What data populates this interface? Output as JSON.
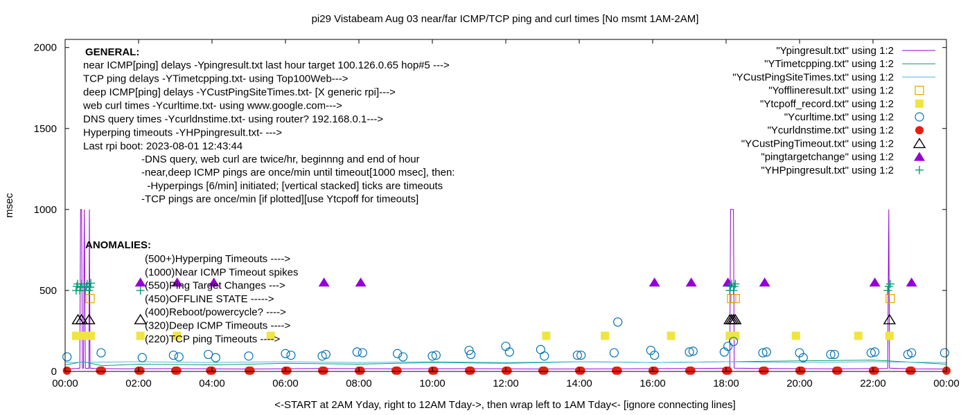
{
  "chart_data": {
    "type": "scatter",
    "title": "pi29 Vistabeam Aug 03  near/far ICMP/TCP ping and curl times [No msmt 1AM-2AM]",
    "xlabel": "<-START at 2AM Yday, right to 12AM Tday->, then wrap left to 1AM Tday<- [ignore connecting lines]",
    "ylabel": "msec",
    "xlim": [
      0,
      24
    ],
    "ylim": [
      0,
      2050
    ],
    "grid": false,
    "legend_position": "top-right",
    "x_ticks": [
      {
        "v": 0,
        "label": "00:00"
      },
      {
        "v": 2,
        "label": "02:00"
      },
      {
        "v": 4,
        "label": "04:00"
      },
      {
        "v": 6,
        "label": "06:00"
      },
      {
        "v": 8,
        "label": "08:00"
      },
      {
        "v": 10,
        "label": "10:00"
      },
      {
        "v": 12,
        "label": "12:00"
      },
      {
        "v": 14,
        "label": "14:00"
      },
      {
        "v": 16,
        "label": "16:00"
      },
      {
        "v": 18,
        "label": "18:00"
      },
      {
        "v": 20,
        "label": "20:00"
      },
      {
        "v": 22,
        "label": "22:00"
      },
      {
        "v": 24,
        "label": "00:00"
      }
    ],
    "y_ticks": [
      {
        "v": 0,
        "label": "0"
      },
      {
        "v": 500,
        "label": "500"
      },
      {
        "v": 1000,
        "label": "1000"
      },
      {
        "v": 1500,
        "label": "1500"
      },
      {
        "v": 2000,
        "label": "2000"
      }
    ],
    "series": [
      {
        "name": "\"Ypingresult.txt\" using 1:2",
        "style": "line",
        "color": "#9400d3",
        "points": [
          [
            0.0,
            15
          ],
          [
            0.3,
            18
          ],
          [
            0.4,
            20
          ],
          [
            0.42,
            1000
          ],
          [
            0.45,
            1000
          ],
          [
            0.47,
            20
          ],
          [
            0.5,
            20
          ],
          [
            0.52,
            1000
          ],
          [
            0.55,
            20
          ],
          [
            0.6,
            18
          ],
          [
            0.65,
            20
          ],
          [
            0.66,
            1000
          ],
          [
            0.68,
            20
          ],
          [
            0.8,
            18
          ],
          [
            1.5,
            16
          ],
          [
            3,
            17
          ],
          [
            5,
            15
          ],
          [
            7,
            18
          ],
          [
            9,
            16
          ],
          [
            11,
            17
          ],
          [
            13,
            15
          ],
          [
            15,
            16
          ],
          [
            17,
            18
          ],
          [
            18.1,
            20
          ],
          [
            18.12,
            1000
          ],
          [
            18.2,
            1000
          ],
          [
            18.22,
            20
          ],
          [
            19,
            18
          ],
          [
            21,
            16
          ],
          [
            22.4,
            18
          ],
          [
            22.43,
            1000
          ],
          [
            22.45,
            20
          ],
          [
            23,
            16
          ],
          [
            24,
            15
          ]
        ]
      },
      {
        "name": "\"YTimetcpping.txt\" using 1:2",
        "style": "line",
        "color": "#009e73",
        "points": [
          [
            0.0,
            40
          ],
          [
            0.5,
            60
          ],
          [
            1,
            35
          ],
          [
            2,
            45
          ],
          [
            4,
            40
          ],
          [
            6,
            50
          ],
          [
            8,
            45
          ],
          [
            10,
            55
          ],
          [
            12,
            50
          ],
          [
            14,
            60
          ],
          [
            16,
            55
          ],
          [
            18,
            60
          ],
          [
            20,
            65
          ],
          [
            22,
            70
          ],
          [
            24,
            45
          ]
        ]
      },
      {
        "name": "\"YCustPingSiteTimes.txt\" using 1:2",
        "style": "line",
        "color": "#56b4e9",
        "points": [
          [
            0.0,
            55
          ],
          [
            2,
            60
          ],
          [
            4,
            55
          ],
          [
            6,
            60
          ],
          [
            8,
            55
          ],
          [
            10,
            60
          ],
          [
            12,
            55
          ],
          [
            14,
            60
          ],
          [
            16,
            55
          ],
          [
            18,
            60
          ],
          [
            20,
            55
          ],
          [
            22,
            60
          ],
          [
            24,
            55
          ]
        ]
      },
      {
        "name": "\"Yofflineresult.txt\" using 1:2",
        "style": "point",
        "marker": "open-square",
        "color": "#e69f00",
        "points": [
          [
            0.68,
            450
          ],
          [
            18.15,
            450
          ],
          [
            18.25,
            450
          ],
          [
            22.47,
            450
          ]
        ]
      },
      {
        "name": "\"Ytcpoff_record.txt\" using 1:2",
        "style": "point",
        "marker": "filled-square",
        "color": "#f0e442",
        "points": [
          [
            0.3,
            220
          ],
          [
            0.45,
            220
          ],
          [
            0.6,
            220
          ],
          [
            0.7,
            220
          ],
          [
            2.05,
            220
          ],
          [
            3.05,
            220
          ],
          [
            5.6,
            220
          ],
          [
            13.1,
            220
          ],
          [
            14.7,
            220
          ],
          [
            16.5,
            220
          ],
          [
            18.1,
            220
          ],
          [
            18.25,
            220
          ],
          [
            19.9,
            220
          ],
          [
            21.6,
            220
          ],
          [
            22.45,
            220
          ]
        ]
      },
      {
        "name": "\"Ycurltime.txt\" using 1:2",
        "style": "point",
        "marker": "open-circle",
        "color": "#0072b2",
        "points": [
          [
            0.05,
            90
          ],
          [
            0.98,
            115
          ],
          [
            2.1,
            85
          ],
          [
            2.95,
            100
          ],
          [
            3.1,
            90
          ],
          [
            3.9,
            105
          ],
          [
            4.1,
            85
          ],
          [
            5.0,
            95
          ],
          [
            6.0,
            110
          ],
          [
            6.15,
            100
          ],
          [
            7.0,
            95
          ],
          [
            7.1,
            105
          ],
          [
            7.95,
            120
          ],
          [
            8.1,
            115
          ],
          [
            9.05,
            110
          ],
          [
            9.2,
            90
          ],
          [
            10.0,
            95
          ],
          [
            10.1,
            100
          ],
          [
            11.0,
            130
          ],
          [
            11.05,
            105
          ],
          [
            12.0,
            155
          ],
          [
            12.1,
            120
          ],
          [
            12.95,
            135
          ],
          [
            13.05,
            95
          ],
          [
            13.95,
            100
          ],
          [
            14.05,
            100
          ],
          [
            14.95,
            115
          ],
          [
            15.05,
            305
          ],
          [
            15.95,
            130
          ],
          [
            16.05,
            100
          ],
          [
            17.0,
            120
          ],
          [
            17.1,
            125
          ],
          [
            17.95,
            120
          ],
          [
            18.05,
            155
          ],
          [
            18.2,
            185
          ],
          [
            19.0,
            115
          ],
          [
            19.1,
            120
          ],
          [
            20.0,
            115
          ],
          [
            20.1,
            85
          ],
          [
            20.85,
            105
          ],
          [
            20.95,
            105
          ],
          [
            21.95,
            115
          ],
          [
            22.05,
            120
          ],
          [
            22.95,
            105
          ],
          [
            23.05,
            115
          ],
          [
            23.95,
            115
          ]
        ]
      },
      {
        "name": "\"Ycurldnstime.txt\" using 1:2",
        "style": "point",
        "marker": "filled-circle",
        "color": "#e51e10",
        "points": [
          [
            0.05,
            5
          ],
          [
            0.95,
            5
          ],
          [
            1.0,
            5
          ],
          [
            2.0,
            5
          ],
          [
            2.05,
            5
          ],
          [
            3.0,
            5
          ],
          [
            3.05,
            5
          ],
          [
            3.95,
            5
          ],
          [
            4.0,
            5
          ],
          [
            5.0,
            5
          ],
          [
            5.05,
            5
          ],
          [
            6.0,
            5
          ],
          [
            6.05,
            5
          ],
          [
            7.0,
            5
          ],
          [
            7.05,
            5
          ],
          [
            8.0,
            5
          ],
          [
            8.05,
            5
          ],
          [
            9.0,
            5
          ],
          [
            9.05,
            5
          ],
          [
            10.0,
            5
          ],
          [
            10.05,
            5
          ],
          [
            11.0,
            5
          ],
          [
            11.05,
            5
          ],
          [
            12.0,
            5
          ],
          [
            12.05,
            5
          ],
          [
            13.0,
            5
          ],
          [
            13.05,
            5
          ],
          [
            14.0,
            5
          ],
          [
            14.05,
            5
          ],
          [
            15.0,
            5
          ],
          [
            15.05,
            5
          ],
          [
            16.0,
            5
          ],
          [
            16.05,
            5
          ],
          [
            17.0,
            5
          ],
          [
            17.05,
            5
          ],
          [
            18.0,
            5
          ],
          [
            18.05,
            5
          ],
          [
            19.0,
            5
          ],
          [
            19.05,
            5
          ],
          [
            20.0,
            5
          ],
          [
            20.05,
            5
          ],
          [
            21.0,
            5
          ],
          [
            21.05,
            5
          ],
          [
            22.0,
            5
          ],
          [
            22.05,
            5
          ],
          [
            23.0,
            5
          ],
          [
            23.05,
            5
          ],
          [
            24.0,
            5
          ]
        ]
      },
      {
        "name": "\"YCustPingTimeout.txt\" using 1:2",
        "style": "point",
        "marker": "open-triangle",
        "color": "#000000",
        "points": [
          [
            0.35,
            320
          ],
          [
            0.45,
            320
          ],
          [
            0.65,
            320
          ],
          [
            2.05,
            320
          ],
          [
            18.1,
            320
          ],
          [
            18.15,
            320
          ],
          [
            18.2,
            320
          ],
          [
            18.25,
            320
          ],
          [
            22.45,
            320
          ]
        ]
      },
      {
        "name": "\"pingtargetchange\" using 1:2",
        "style": "point",
        "marker": "filled-triangle",
        "color": "#9400d3",
        "points": [
          [
            2.05,
            550
          ],
          [
            3.05,
            550
          ],
          [
            4.05,
            550
          ],
          [
            7.05,
            550
          ],
          [
            8.05,
            550
          ],
          [
            16.05,
            550
          ],
          [
            17.05,
            550
          ],
          [
            18.05,
            550
          ],
          [
            19.05,
            550
          ],
          [
            22.05,
            550
          ],
          [
            23.05,
            550
          ]
        ]
      },
      {
        "name": "\"YHPpingresult.txt\" using 1:2",
        "style": "point",
        "marker": "plus",
        "color": "#009e73",
        "points": [
          [
            0.3,
            500
          ],
          [
            0.32,
            525
          ],
          [
            0.34,
            540
          ],
          [
            0.4,
            500
          ],
          [
            0.42,
            520
          ],
          [
            0.45,
            540
          ],
          [
            0.55,
            500
          ],
          [
            0.58,
            525
          ],
          [
            0.6,
            540
          ],
          [
            0.65,
            500
          ],
          [
            0.68,
            520
          ],
          [
            0.7,
            545
          ],
          [
            2.05,
            500
          ],
          [
            18.1,
            500
          ],
          [
            18.12,
            525
          ],
          [
            18.15,
            540
          ],
          [
            18.2,
            500
          ],
          [
            18.22,
            525
          ],
          [
            18.25,
            540
          ],
          [
            22.4,
            500
          ],
          [
            22.43,
            525
          ],
          [
            22.47,
            540
          ]
        ]
      }
    ],
    "annotations": {
      "general_title": "GENERAL:",
      "general_lines": [
        "near ICMP[ping] delays -Ypingresult.txt last hour target 100.126.0.65 hop#5 --->",
        "TCP ping delays -YTimetcpping.txt- using Top100Web--->",
        "deep ICMP[ping] delays -YCustPingSiteTimes.txt- [X generic rpi]--->",
        "web curl times -Ycurltime.txt- using www.google.com--->",
        "DNS query times -Ycurldnstime.txt- using router? 192.168.0.1--->",
        "Hyperping timeouts -YHPpingresult.txt- --->",
        "Last rpi boot: 2023-08-01 12:43:44"
      ],
      "notes_lines": [
        "-DNS query, web curl are twice/hr, beginnng and end of hour",
        "-near,deep ICMP pings are once/min until timeout[1000 msec], then:",
        "  -Hyperpings [6/min] initiated; [vertical stacked] ticks are timeouts",
        "-TCP pings are once/min [if plotted][use Ytcpoff for timeouts]"
      ],
      "anomalies_title": "ANOMALIES:",
      "anomalies_lines": [
        "(500+)Hyperping Timeouts ---->",
        "(1000)Near ICMP Timeout spikes",
        "(550)Ping Target Changes --->",
        "(450)OFFLINE STATE ----->",
        "(400)Reboot/powercycle? ---->",
        "(320)Deep ICMP Timeouts ---->",
        "(220)TCP ping Timeouts ---->"
      ]
    }
  }
}
